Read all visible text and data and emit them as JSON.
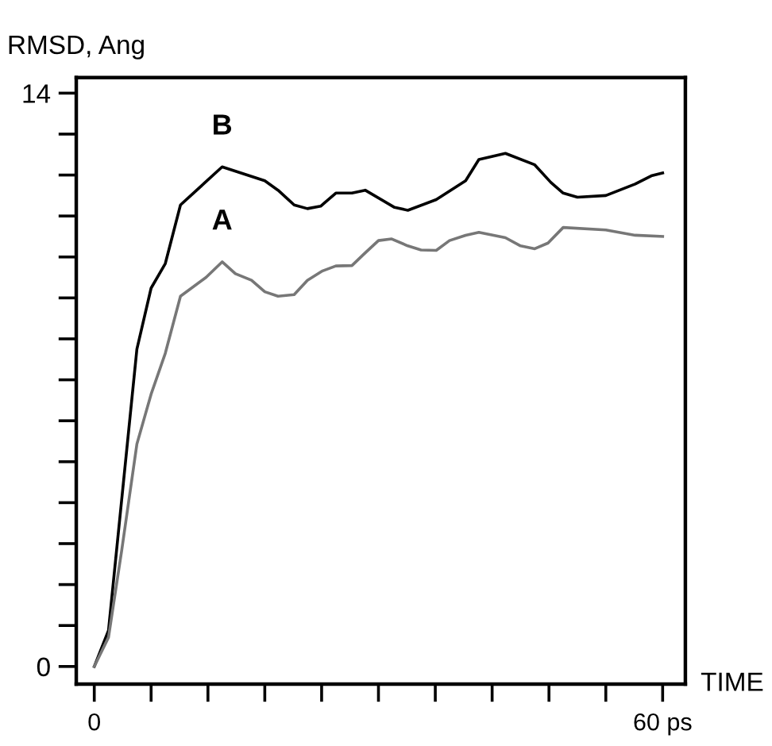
{
  "chart_data": {
    "type": "line",
    "xlabel": "TIME",
    "ylabel": "RMSD, Ang",
    "xlim": [
      -1.9,
      62.4
    ],
    "ylim": [
      -0.43,
      14.38
    ],
    "xticks": [
      {
        "value": 0,
        "label": "0"
      },
      {
        "value": 6,
        "label": null
      },
      {
        "value": 12,
        "label": null
      },
      {
        "value": 18,
        "label": null
      },
      {
        "value": 24,
        "label": null
      },
      {
        "value": 30,
        "label": null
      },
      {
        "value": 36,
        "label": null
      },
      {
        "value": 42,
        "label": null
      },
      {
        "value": 48,
        "label": null
      },
      {
        "value": 54,
        "label": null
      },
      {
        "value": 60,
        "label": "60 ps"
      }
    ],
    "yticks": [
      0,
      {
        "value": 1,
        "label": null
      },
      {
        "value": 2,
        "label": null
      },
      {
        "value": 3,
        "label": null
      },
      {
        "value": 4,
        "label": null
      },
      {
        "value": 5,
        "label": null
      },
      {
        "value": 6,
        "label": null
      },
      {
        "value": 7,
        "label": null
      },
      {
        "value": 8,
        "label": null
      },
      {
        "value": 9,
        "label": null
      },
      {
        "value": 10,
        "label": null
      },
      {
        "value": 11,
        "label": null
      },
      {
        "value": 12,
        "label": null
      },
      {
        "value": 13,
        "label": null
      },
      14
    ],
    "grid": false,
    "legend": false,
    "marker": "none",
    "line_style": "solid",
    "annotations": [
      {
        "text": "B",
        "x": 13.5,
        "y": 12.2
      },
      {
        "text": "A",
        "x": 13.5,
        "y": 9.88
      }
    ],
    "series": [
      {
        "color": "#000000",
        "x": [
          0,
          1.5,
          4.5,
          6,
          7.5,
          9.1,
          13.5,
          18,
          19.4,
          21.1,
          22.5,
          23.9,
          25.5,
          27.2,
          28.6,
          31.7,
          33.1,
          36.1,
          39.2,
          40.6,
          43.4,
          46.5,
          48.2,
          49.5,
          51,
          54,
          57.1,
          58.8,
          60
        ],
        "values": [
          0,
          0.88,
          7.75,
          9.24,
          9.84,
          11.27,
          12.2,
          11.86,
          11.63,
          11.27,
          11.18,
          11.24,
          11.56,
          11.56,
          11.63,
          11.21,
          11.14,
          11.4,
          11.86,
          12.38,
          12.53,
          12.25,
          11.82,
          11.56,
          11.46,
          11.5,
          11.78,
          11.98,
          12.05
        ]
      },
      {
        "color": "#777777",
        "x": [
          0,
          1.5,
          2.9,
          4.5,
          6,
          7.5,
          9.1,
          11.8,
          13.5,
          14.9,
          16.6,
          18,
          19.4,
          21.1,
          22.5,
          24.1,
          25.5,
          27.2,
          28.6,
          30,
          31.4,
          33.1,
          34.5,
          36.1,
          37.5,
          39.2,
          40.6,
          43.4,
          45,
          46.5,
          47.9,
          49.5,
          54,
          57.1,
          60
        ],
        "values": [
          0,
          0.71,
          2.84,
          5.43,
          6.65,
          7.65,
          9.04,
          9.5,
          9.88,
          9.59,
          9.43,
          9.15,
          9.04,
          9.08,
          9.43,
          9.66,
          9.78,
          9.79,
          10.1,
          10.4,
          10.44,
          10.27,
          10.17,
          10.16,
          10.4,
          10.53,
          10.6,
          10.47,
          10.27,
          10.2,
          10.34,
          10.72,
          10.66,
          10.53,
          10.5
        ]
      }
    ]
  }
}
